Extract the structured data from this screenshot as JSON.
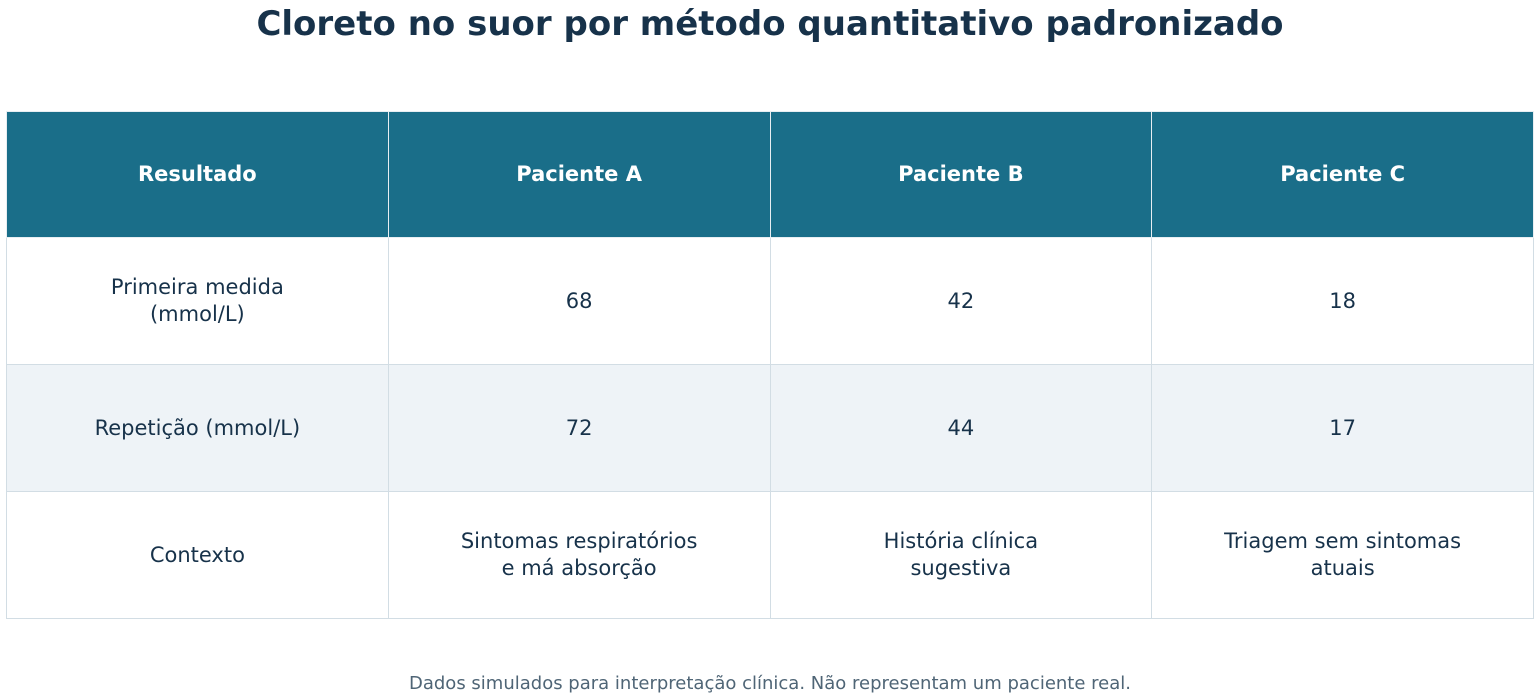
{
  "title": "Cloreto no suor por método quantitativo padronizado",
  "chart_data": {
    "type": "table",
    "title": "Cloreto no suor por método quantitativo padronizado",
    "columns": [
      "Resultado",
      "Paciente A",
      "Paciente B",
      "Paciente C"
    ],
    "rows": [
      [
        "Primeira medida\n(mmol/L)",
        "68",
        "42",
        "18"
      ],
      [
        "Repetição (mmol/L)",
        "72",
        "44",
        "17"
      ],
      [
        "Contexto",
        "Sintomas respiratórios\ne má absorção",
        "História clínica\nsugestiva",
        "Triagem sem sintomas\natuais"
      ]
    ],
    "header_color": "#1a6e89",
    "stripe_color": "#eef3f7"
  },
  "footnote": "Dados simulados para interpretação clínica. Não representam um paciente real."
}
